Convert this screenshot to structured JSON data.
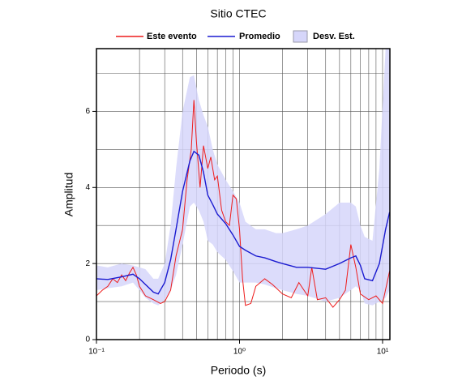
{
  "chart_data": {
    "type": "line",
    "title": "Sitio CTEC",
    "x_label": "Periodo (s)",
    "y_label": "Amplitud",
    "xscale": "log",
    "xlim": [
      0.1,
      11.25
    ],
    "ylim": [
      0,
      7.65
    ],
    "xticks": [
      {
        "value": 0.1,
        "label": "10⁻¹"
      },
      {
        "value": 1,
        "label": "10⁰"
      },
      {
        "value": 10,
        "label": "10¹"
      }
    ],
    "xminor": [
      0.2,
      0.3,
      0.4,
      0.5,
      0.6,
      0.7,
      0.8,
      0.9,
      2,
      3,
      4,
      5,
      6,
      7,
      8,
      9
    ],
    "yticks": [
      0,
      2,
      4,
      6
    ],
    "yminor": [
      1,
      3,
      5,
      7
    ],
    "grid": true,
    "band": {
      "name": "Desv. Est.",
      "color": "#d6d6fa",
      "x": [
        0.1,
        0.12,
        0.15,
        0.18,
        0.2,
        0.22,
        0.25,
        0.27,
        0.3,
        0.33,
        0.36,
        0.4,
        0.45,
        0.48,
        0.52,
        0.56,
        0.6,
        0.65,
        0.7,
        0.8,
        0.9,
        1.0,
        1.1,
        1.3,
        1.5,
        1.8,
        2.0,
        2.5,
        3.0,
        4.0,
        5.0,
        6.0,
        6.5,
        7.0,
        7.5,
        8.5,
        9.5,
        10.5,
        11.2
      ],
      "upper": [
        1.95,
        1.9,
        2.0,
        1.95,
        1.9,
        1.85,
        1.6,
        1.6,
        2.0,
        3.0,
        4.5,
        6.0,
        6.9,
        6.95,
        6.3,
        5.9,
        5.6,
        5.0,
        4.6,
        4.2,
        3.9,
        3.6,
        3.1,
        2.9,
        2.9,
        2.8,
        2.8,
        2.9,
        3.0,
        3.3,
        3.6,
        3.6,
        3.5,
        3.0,
        2.7,
        2.6,
        4.5,
        7.65,
        7.65
      ],
      "lower": [
        1.3,
        1.35,
        1.4,
        1.5,
        1.3,
        1.1,
        0.95,
        0.9,
        1.05,
        1.3,
        1.7,
        2.5,
        3.5,
        3.6,
        3.4,
        3.1,
        2.6,
        2.5,
        2.3,
        2.1,
        1.8,
        1.5,
        1.5,
        1.5,
        1.45,
        1.35,
        1.3,
        1.2,
        1.15,
        1.0,
        1.1,
        1.3,
        1.4,
        1.3,
        0.95,
        0.9,
        1.0,
        1.1,
        1.3
      ]
    },
    "series": [
      {
        "name": "Este evento",
        "color": "#ee1c1c",
        "x": [
          0.1,
          0.11,
          0.12,
          0.13,
          0.14,
          0.15,
          0.16,
          0.17,
          0.18,
          0.19,
          0.2,
          0.22,
          0.25,
          0.28,
          0.3,
          0.33,
          0.36,
          0.4,
          0.43,
          0.46,
          0.48,
          0.5,
          0.53,
          0.56,
          0.6,
          0.63,
          0.67,
          0.7,
          0.75,
          0.8,
          0.85,
          0.9,
          0.95,
          1.0,
          1.05,
          1.1,
          1.2,
          1.3,
          1.5,
          1.7,
          2.0,
          2.3,
          2.6,
          3.0,
          3.2,
          3.5,
          4.0,
          4.5,
          5.0,
          5.5,
          6.0,
          6.5,
          7.0,
          8.0,
          9.0,
          10.0,
          11.2
        ],
        "values": [
          1.15,
          1.3,
          1.4,
          1.6,
          1.5,
          1.7,
          1.55,
          1.75,
          1.9,
          1.7,
          1.4,
          1.15,
          1.05,
          0.95,
          1.0,
          1.3,
          2.2,
          2.9,
          4.2,
          5.0,
          6.3,
          5.2,
          4.0,
          5.1,
          4.5,
          4.8,
          4.2,
          4.3,
          3.4,
          3.1,
          3.0,
          3.8,
          3.7,
          2.9,
          1.6,
          0.9,
          0.95,
          1.4,
          1.6,
          1.45,
          1.2,
          1.1,
          1.5,
          1.15,
          1.9,
          1.05,
          1.1,
          0.85,
          1.05,
          1.3,
          2.5,
          1.9,
          1.2,
          1.05,
          1.15,
          0.95,
          1.8
        ]
      },
      {
        "name": "Promedio",
        "color": "#1a1ad0",
        "x": [
          0.1,
          0.12,
          0.15,
          0.18,
          0.2,
          0.22,
          0.25,
          0.27,
          0.3,
          0.33,
          0.36,
          0.4,
          0.45,
          0.48,
          0.52,
          0.56,
          0.6,
          0.65,
          0.7,
          0.8,
          0.9,
          1.0,
          1.1,
          1.3,
          1.5,
          1.8,
          2.0,
          2.5,
          3.0,
          4.0,
          5.0,
          6.0,
          6.5,
          7.0,
          7.5,
          8.5,
          9.5,
          10.5,
          11.2
        ],
        "values": [
          1.6,
          1.58,
          1.65,
          1.72,
          1.6,
          1.45,
          1.25,
          1.2,
          1.5,
          2.1,
          2.9,
          3.9,
          4.7,
          4.95,
          4.85,
          4.4,
          3.8,
          3.55,
          3.3,
          3.05,
          2.75,
          2.45,
          2.35,
          2.2,
          2.15,
          2.05,
          2.0,
          1.9,
          1.9,
          1.85,
          2.0,
          2.15,
          2.2,
          1.95,
          1.6,
          1.55,
          2.0,
          2.9,
          3.35
        ]
      }
    ]
  }
}
